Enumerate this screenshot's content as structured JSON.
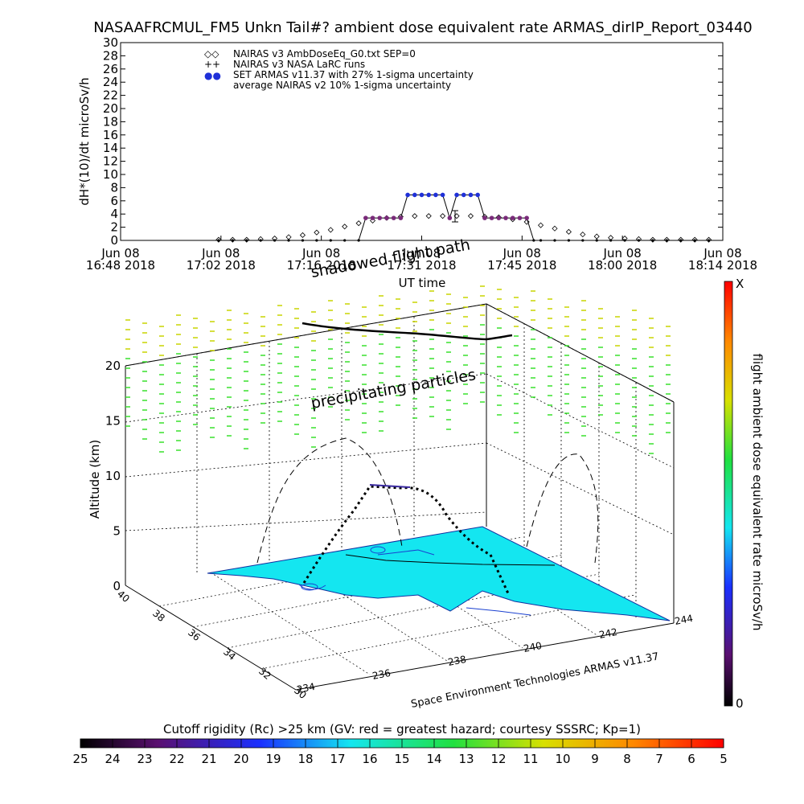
{
  "title": "NASAAFRCMUL_FM5 Unkn Tail#? ambient dose equivalent rate ARMAS_dirIP_Report_03440",
  "colors": {
    "armas_blue": "#1f30d8",
    "armas_purple": "#7a2a7a",
    "surface_cyan": "#14e6f0",
    "precip_green": "#39e02c",
    "precip_yellow": "#c8d400"
  },
  "chart_data": [
    {
      "type": "scatter",
      "ylabel": "dH*(10)/dt microSv/h",
      "xlabel": "UT time",
      "ylim": [
        0,
        30
      ],
      "yticks": [
        "0",
        "2",
        "4",
        "6",
        "8",
        "10",
        "12",
        "14",
        "16",
        "18",
        "20",
        "22",
        "24",
        "26",
        "28",
        "30"
      ],
      "xticks": [
        {
          "date": "Jun 08",
          "time": "16:48 2018"
        },
        {
          "date": "Jun 08",
          "time": "17:02 2018"
        },
        {
          "date": "Jun 08",
          "time": "17:16 2018"
        },
        {
          "date": "Jun 08",
          "time": "17:31 2018"
        },
        {
          "date": "Jun 08",
          "time": "17:45 2018"
        },
        {
          "date": "Jun 08",
          "time": "18:00 2018"
        },
        {
          "date": "Jun 08",
          "time": "18:14 2018"
        }
      ],
      "xlim": [
        "16:48",
        "18:14"
      ],
      "legend": [
        {
          "symbol": "◇◇",
          "label": "NAIRAS v3 AmbDoseEq_G0.txt SEP=0"
        },
        {
          "symbol": "++",
          "label": "NAIRAS v3 NASA LaRC runs"
        },
        {
          "symbol": "●●",
          "label": "SET ARMAS v11.37 with 27% 1-sigma uncertainty"
        },
        {
          "symbol": "",
          "label": "average NAIRAS v2 10% 1-sigma uncertainty"
        }
      ],
      "series": [
        {
          "name": "NAIRAS v3 AmbDoseEq_G0.txt SEP=0",
          "x": [
            "17:02",
            "17:04",
            "17:06",
            "17:08",
            "17:10",
            "17:12",
            "17:14",
            "17:16",
            "17:18",
            "17:20",
            "17:22",
            "17:24",
            "17:26",
            "17:28",
            "17:30",
            "17:32",
            "17:34",
            "17:36",
            "17:38",
            "17:40",
            "17:42",
            "17:44",
            "17:46",
            "17:48",
            "17:50",
            "17:52",
            "17:54",
            "17:56",
            "17:58",
            "18:00",
            "18:02",
            "18:04",
            "18:06",
            "18:08",
            "18:10",
            "18:12"
          ],
          "y": [
            0.1,
            0.1,
            0.1,
            0.2,
            0.3,
            0.5,
            0.8,
            1.2,
            1.6,
            2.1,
            2.6,
            3.0,
            3.4,
            3.6,
            3.7,
            3.7,
            3.7,
            3.7,
            3.7,
            3.6,
            3.5,
            3.2,
            2.8,
            2.3,
            1.8,
            1.3,
            0.9,
            0.6,
            0.4,
            0.3,
            0.2,
            0.1,
            0.1,
            0.1,
            0.1,
            0.1
          ]
        },
        {
          "name": "SET ARMAS v11.37 with 27% 1-sigma uncertainty",
          "x": [
            "17:02",
            "17:04",
            "17:06",
            "17:08",
            "17:10",
            "17:12",
            "17:14",
            "17:16",
            "17:18",
            "17:20",
            "17:22",
            "17:23",
            "17:24",
            "17:25",
            "17:26",
            "17:27",
            "17:28",
            "17:29",
            "17:30",
            "17:31",
            "17:32",
            "17:33",
            "17:34",
            "17:35",
            "17:36",
            "17:37",
            "17:38",
            "17:39",
            "17:40",
            "17:41",
            "17:42",
            "17:43",
            "17:44",
            "17:45",
            "17:46",
            "17:47",
            "17:48",
            "17:50",
            "17:52",
            "17:54",
            "17:56",
            "17:58",
            "18:00",
            "18:02",
            "18:04",
            "18:06",
            "18:08",
            "18:10",
            "18:12"
          ],
          "y": [
            0,
            0,
            0,
            0,
            0,
            0,
            0,
            0,
            0,
            0,
            0,
            3.4,
            3.4,
            3.4,
            3.4,
            3.4,
            3.4,
            6.9,
            6.9,
            6.9,
            6.9,
            6.9,
            6.9,
            3.4,
            6.9,
            6.9,
            6.9,
            6.9,
            3.4,
            3.4,
            3.4,
            3.4,
            3.4,
            3.4,
            3.4,
            0,
            0,
            0,
            0,
            0,
            0,
            0,
            0,
            0,
            0,
            0,
            0,
            0,
            0
          ]
        }
      ]
    },
    {
      "type": "scatter",
      "zlabel": "Altitude (km)",
      "zlim": [
        0,
        20
      ],
      "zticks": [
        "0",
        "5",
        "10",
        "15",
        "20"
      ],
      "lat_ticks": [
        "40",
        "38",
        "36",
        "34",
        "32",
        "30"
      ],
      "lon_ticks": [
        "234",
        "236",
        "238",
        "240",
        "242",
        "244"
      ],
      "annotations": [
        "precipitating particles",
        "shadowed flight path"
      ],
      "credit": "Space Environment Technologies ARMAS v11.37",
      "colorbar": {
        "label": "flight ambient dose equivalent rate microSv/h",
        "top": "X",
        "bottom": "0"
      }
    },
    {
      "type": "heatmap",
      "title": "Cutoff rigidity (Rc) >25 km (GV: red = greatest hazard; courtesy SSSRC; Kp=1)",
      "ticks": [
        "25",
        "24",
        "23",
        "22",
        "21",
        "20",
        "19",
        "18",
        "17",
        "16",
        "15",
        "14",
        "13",
        "12",
        "11",
        "10",
        "9",
        "8",
        "7",
        "6",
        "5"
      ]
    }
  ]
}
